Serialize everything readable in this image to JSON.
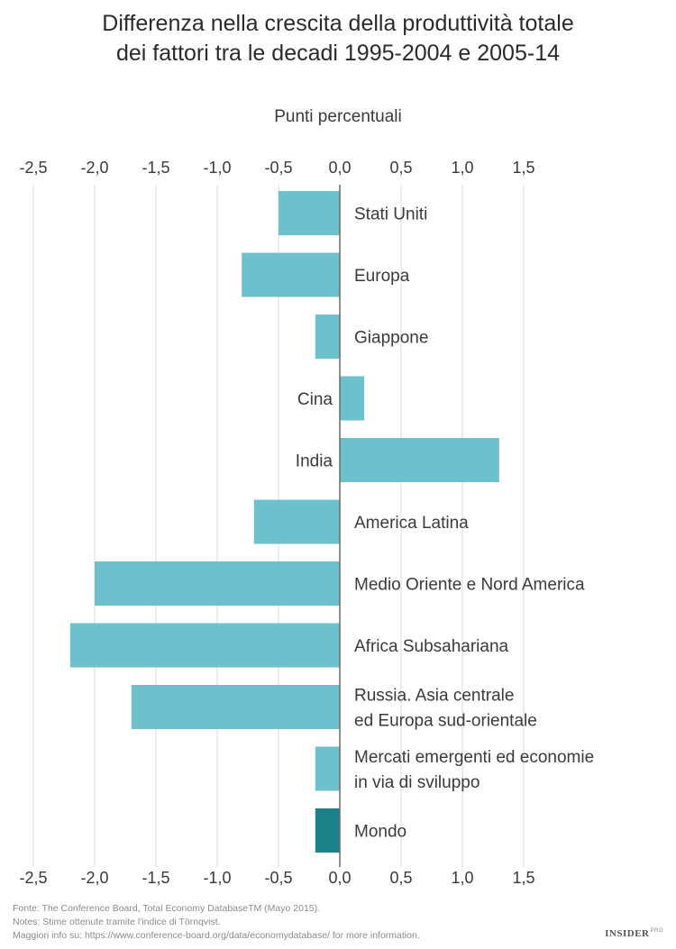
{
  "chart_data": {
    "type": "bar",
    "orientation": "horizontal",
    "title_lines": [
      "Differenza nella crescita della produttività totale",
      "dei fattori tra le decadi 1995-2004 e 2005-14"
    ],
    "xlabel": "Punti percentuali",
    "xlim": [
      -2.5,
      1.5
    ],
    "xticks": [
      -2.5,
      -2.0,
      -1.5,
      -1.0,
      -0.5,
      0.0,
      0.5,
      1.0,
      1.5
    ],
    "xtick_labels": [
      "-2,5",
      "-2,0",
      "-1,5",
      "-1,0",
      "-0,5",
      "0,0",
      "0,5",
      "1,0",
      "1,5"
    ],
    "grid": true,
    "categories": [
      [
        "Stati Uniti"
      ],
      [
        "Europa"
      ],
      [
        "Giappone"
      ],
      [
        "Cina"
      ],
      [
        "India"
      ],
      [
        "America Latina"
      ],
      [
        "Medio Oriente e Nord America"
      ],
      [
        "Africa Subsahariana"
      ],
      [
        "Russia. Asia centrale",
        "ed Europa sud-orientale"
      ],
      [
        "Mercati emergenti ed economie",
        "in via di sviluppo"
      ],
      [
        "Mondo"
      ]
    ],
    "values": [
      -0.5,
      -0.8,
      -0.2,
      0.2,
      1.3,
      -0.7,
      -2.0,
      -2.2,
      -1.7,
      -0.2,
      -0.2
    ],
    "highlight_index": 10,
    "colors": {
      "bar": "#6cc1cc",
      "highlight": "#1a8288",
      "grid": "#d9d9d9",
      "zero_line": "#6a6a6a",
      "text": "#3a3a3a"
    }
  },
  "footer": {
    "source": "Fonte: The Conference Board, Total Economy DatabaseTM (Mayo 2015).",
    "notes": "Notes: Stime ottenute tramite l'indice di Törnqvist.",
    "more": "Maggiori info su: https://www.conference-board.org/data/economydatabase/ for more information."
  },
  "brand": {
    "name": "INSIDER",
    "suffix": "PRO"
  }
}
